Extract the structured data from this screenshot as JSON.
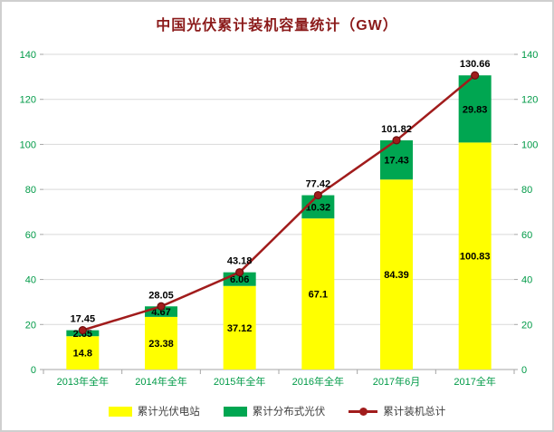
{
  "chart_data": {
    "type": "bar",
    "stacked": true,
    "title": "中国光伏累计装机容量统计（GW）",
    "title_color": "#8b1a1a",
    "categories": [
      "2013年全年",
      "2014年全年",
      "2015年全年",
      "2016年全年",
      "2017年6月",
      "2017全年"
    ],
    "series": [
      {
        "name": "累计光伏电站",
        "type": "bar",
        "color": "#ffff00",
        "values": [
          14.8,
          23.38,
          37.12,
          67.1,
          84.39,
          100.83
        ]
      },
      {
        "name": "累计分布式光伏",
        "type": "bar",
        "color": "#00a651",
        "values": [
          2.65,
          4.67,
          6.06,
          10.32,
          17.43,
          29.83
        ]
      },
      {
        "name": "累计装机总计",
        "type": "line",
        "color": "#a11c1c",
        "marker_stroke": "#6e0f0f",
        "values": [
          17.45,
          28.05,
          43.18,
          77.42,
          101.82,
          130.66
        ]
      }
    ],
    "ylim": [
      0,
      140
    ],
    "ytick_step": 20,
    "yticks": [
      0,
      20,
      40,
      60,
      80,
      100,
      120,
      140
    ],
    "grid": true,
    "gridline_color": "#d9d9d9",
    "axis_line_color": "#a6a6a6",
    "axis_label_color": "#009a47",
    "data_label_color": "#000000",
    "legend_position": "bottom",
    "ylabel": "",
    "xlabel": ""
  }
}
